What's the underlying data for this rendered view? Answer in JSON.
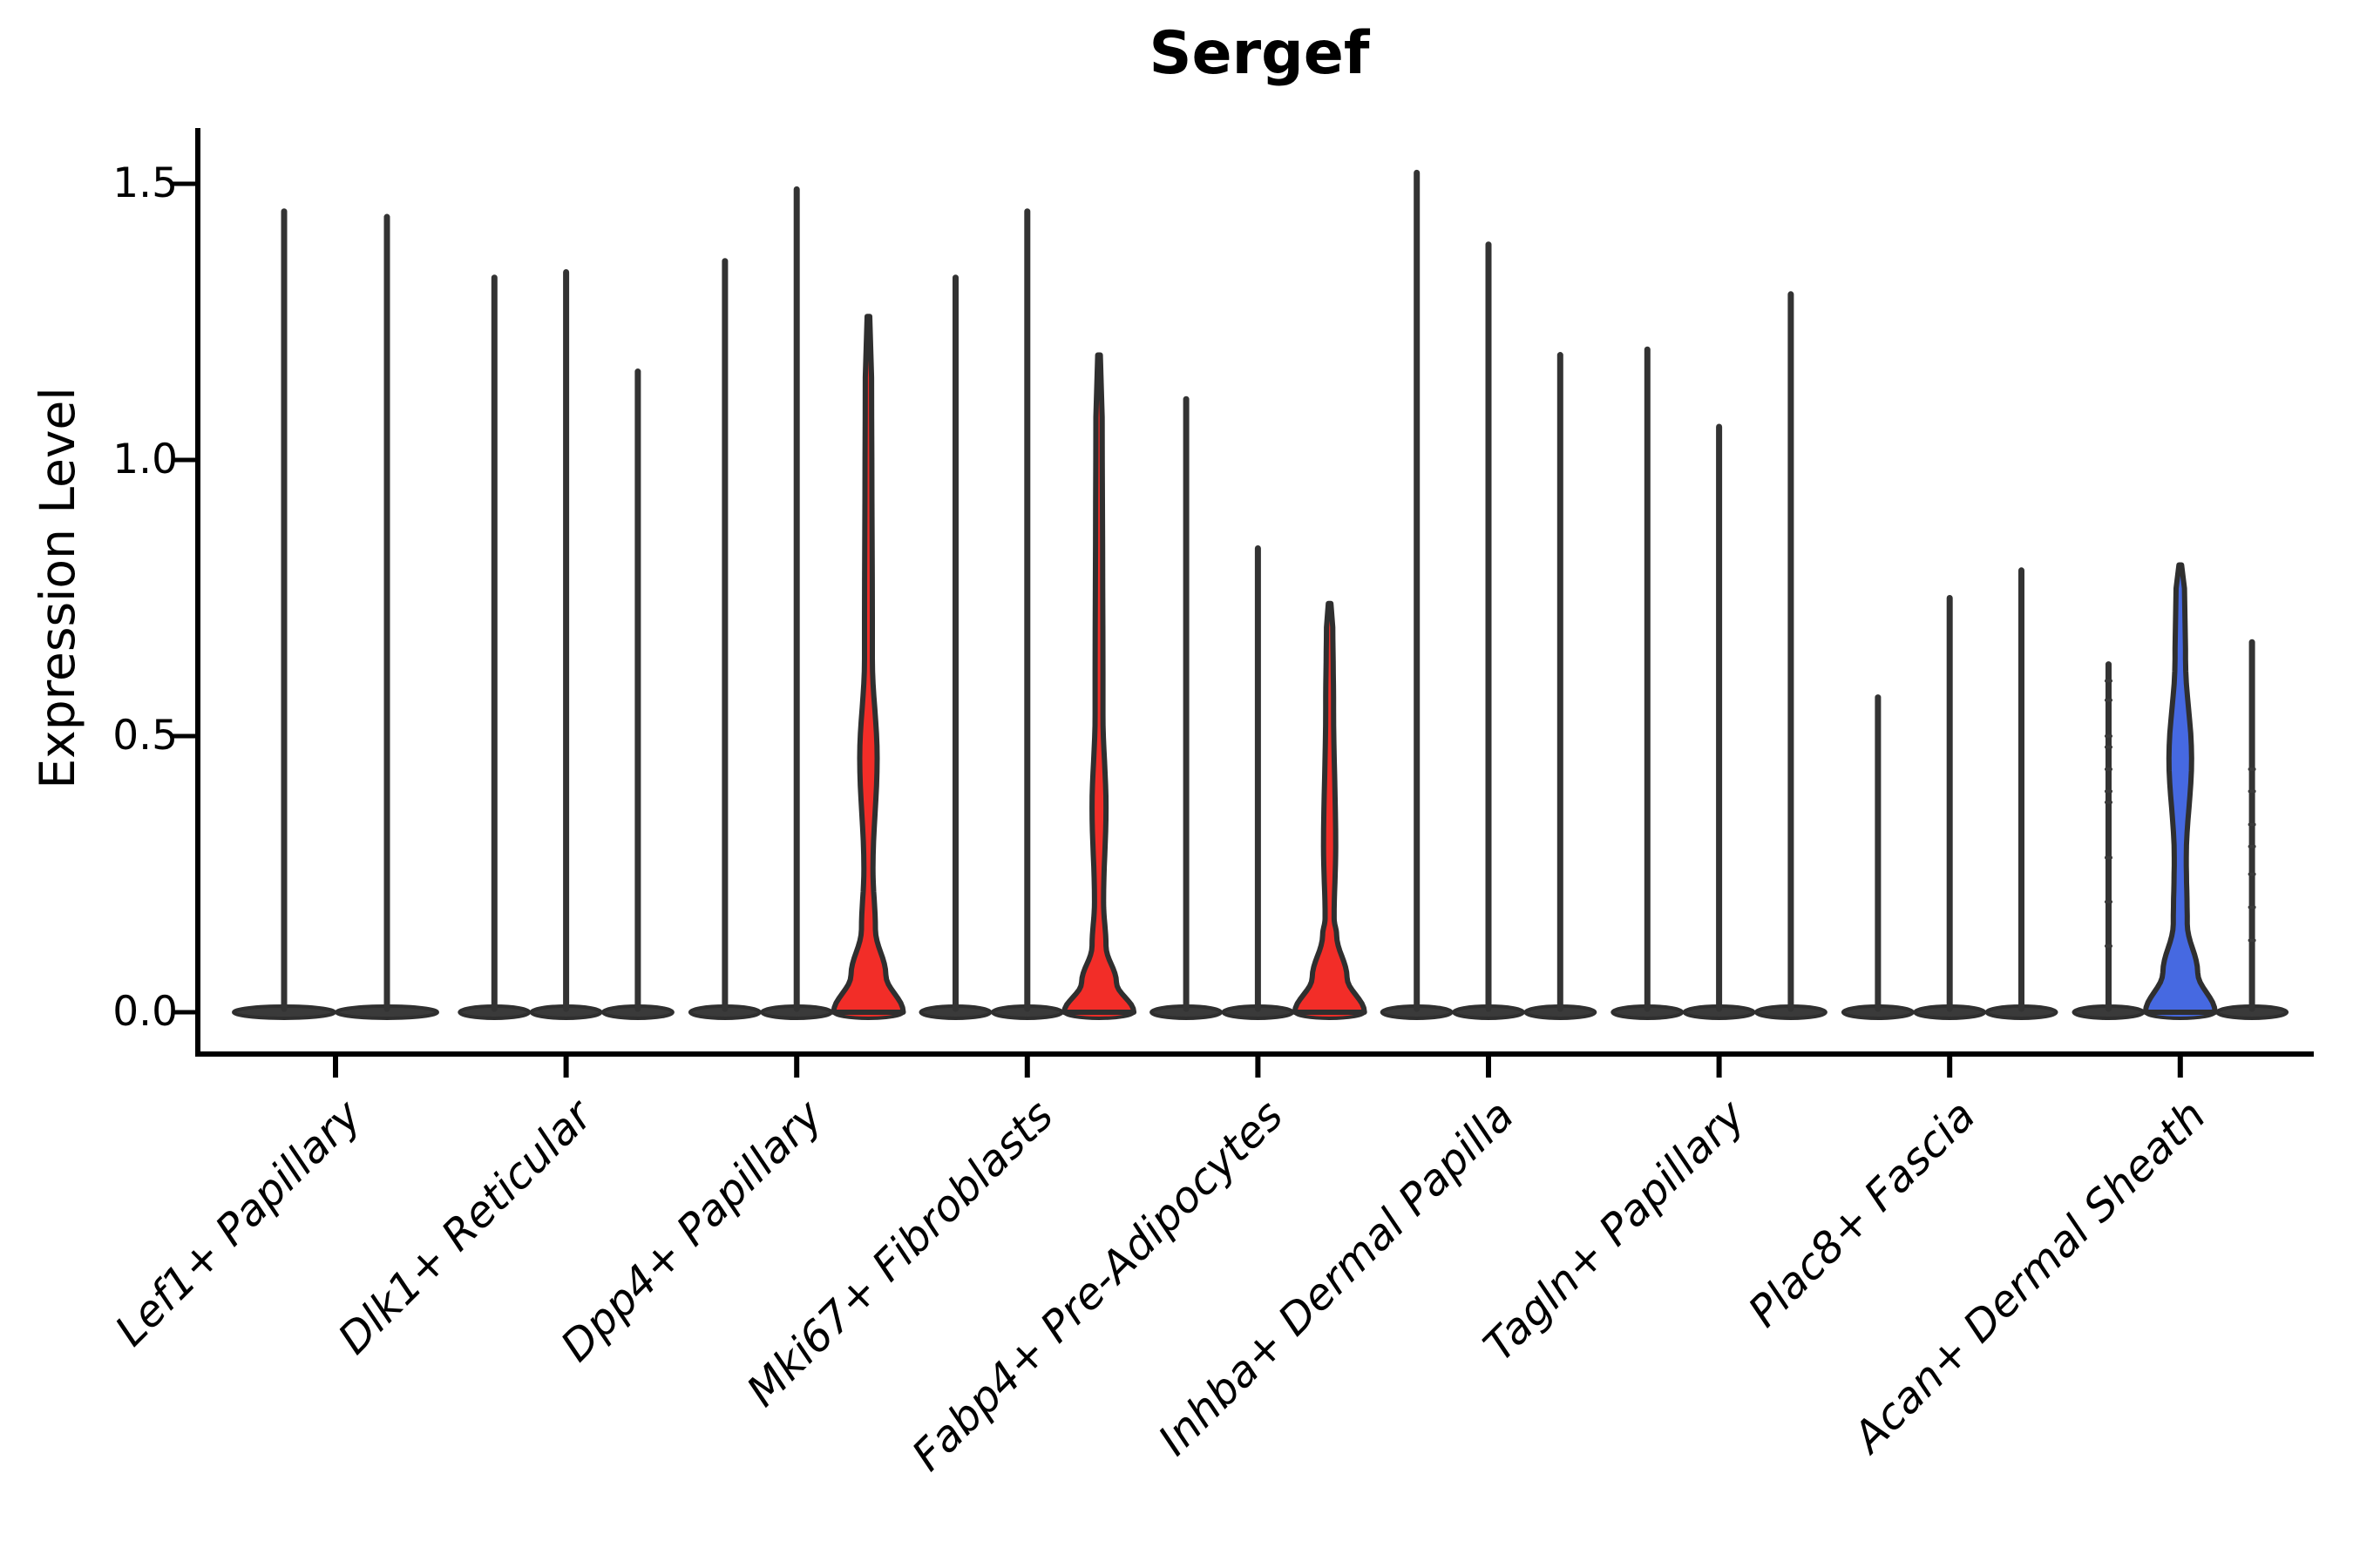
{
  "chart_data": {
    "type": "violin",
    "title": "Sergef",
    "ylabel": "Expression Level",
    "xlabel": "",
    "ylim": [
      0,
      1.6
    ],
    "yticks": [
      0.0,
      0.5,
      1.0,
      1.5
    ],
    "ytick_labels": [
      "1.5",
      "1.0",
      "0.5",
      "0.0"
    ],
    "grid": false,
    "legend": "none",
    "colors": {
      "red": "#F22D28",
      "blue": "#4669E1",
      "outline": "#2F2F2F",
      "stick": "#333333",
      "axis": "#000000"
    },
    "groups": [
      {
        "label": "Lef1+ Papillary",
        "violins": [
          {
            "max": 1.45
          },
          {
            "max": 1.44
          }
        ]
      },
      {
        "label": "Dlk1+ Reticular",
        "violins": [
          {
            "max": 1.33
          },
          {
            "max": 1.34
          },
          {
            "max": 1.16
          }
        ]
      },
      {
        "label": "Dpp4+ Papillary",
        "violins": [
          {
            "max": 1.36
          },
          {
            "max": 1.49
          },
          {
            "max": 1.26,
            "fill": "red",
            "profile": {
              "base_top": 0.15,
              "lo": 0.26,
              "peak": 0.46,
              "hi": 0.64,
              "bulge": 10,
              "stick": 4.5
            }
          }
        ]
      },
      {
        "label": "Mki67+ Fibroblasts",
        "violins": [
          {
            "max": 1.33
          },
          {
            "max": 1.45
          },
          {
            "max": 1.19,
            "fill": "red",
            "profile": {
              "base_top": 0.12,
              "lo": 0.2,
              "peak": 0.37,
              "hi": 0.54,
              "bulge": 8,
              "stick": 4.5
            }
          }
        ]
      },
      {
        "label": "Fabp4+ Pre-Adipocytes",
        "violins": [
          {
            "max": 1.11
          },
          {
            "max": 0.84
          },
          {
            "max": 0.74,
            "fill": "red",
            "profile": {
              "base_top": 0.14,
              "lo": 0.17,
              "peak": 0.3,
              "hi": 0.55,
              "bulge": 7,
              "stick": 4.5
            }
          }
        ]
      },
      {
        "label": "Inhba+ Dermal Papilla",
        "violins": [
          {
            "max": 1.52
          },
          {
            "max": 1.39
          },
          {
            "max": 1.19
          }
        ]
      },
      {
        "label": "Tagln+ Papillary",
        "violins": [
          {
            "max": 1.2
          },
          {
            "max": 1.06
          },
          {
            "max": 1.3
          }
        ]
      },
      {
        "label": "Plac8+ Fascia",
        "violins": [
          {
            "max": 0.57
          },
          {
            "max": 0.75
          },
          {
            "max": 0.8
          }
        ]
      },
      {
        "label": "Acan+ Dermal Sheath",
        "violins": [
          {
            "max": 0.63,
            "dots": [
              0.6,
              0.565,
              0.5,
              0.48,
              0.44,
              0.4,
              0.38,
              0.28,
              0.2,
              0.12
            ]
          },
          {
            "max": 0.81,
            "fill": "blue",
            "profile": {
              "base_top": 0.16,
              "lo": 0.28,
              "peak": 0.46,
              "hi": 0.64,
              "bulge": 13,
              "stick": 6
            }
          },
          {
            "max": 0.67,
            "dots": [
              0.44,
              0.4,
              0.34,
              0.3,
              0.25,
              0.19,
              0.13
            ]
          }
        ]
      }
    ]
  }
}
